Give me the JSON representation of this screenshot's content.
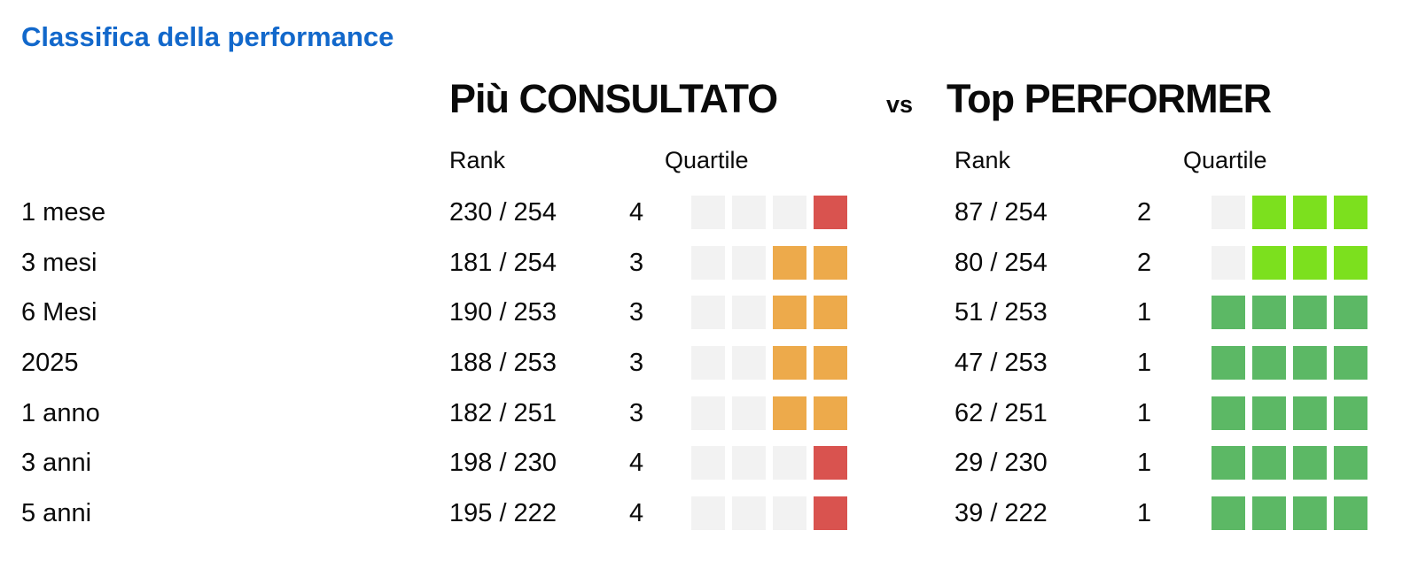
{
  "title": "Classifica della performance",
  "comparison": {
    "left_header_prefix": "Più",
    "left_header_name": "CONSULTATO",
    "vs": "vs",
    "right_header_prefix": "Top",
    "right_header_name": "PERFORMER",
    "columns": {
      "rank": "Rank",
      "quartile": "Quartile"
    }
  },
  "colors": {
    "title_blue": "#1268CB",
    "square_empty": "#F2F2F2",
    "quartile_1": "#5CB865",
    "quartile_2": "#7CE01E",
    "quartile_3": "#EDAA4B",
    "quartile_4": "#D9534F"
  },
  "rows": [
    {
      "period": "1 mese",
      "consultato": {
        "rank": "230 / 254",
        "quartile": 4
      },
      "performer": {
        "rank": "87 / 254",
        "quartile": 2
      }
    },
    {
      "period": "3 mesi",
      "consultato": {
        "rank": "181 / 254",
        "quartile": 3
      },
      "performer": {
        "rank": "80 / 254",
        "quartile": 2
      }
    },
    {
      "period": "6 Mesi",
      "consultato": {
        "rank": "190 / 253",
        "quartile": 3
      },
      "performer": {
        "rank": "51 / 253",
        "quartile": 1
      }
    },
    {
      "period": "2025",
      "consultato": {
        "rank": "188 / 253",
        "quartile": 3
      },
      "performer": {
        "rank": "47 / 253",
        "quartile": 1
      }
    },
    {
      "period": "1 anno",
      "consultato": {
        "rank": "182 / 251",
        "quartile": 3
      },
      "performer": {
        "rank": "62 / 251",
        "quartile": 1
      }
    },
    {
      "period": "3 anni",
      "consultato": {
        "rank": "198 / 230",
        "quartile": 4
      },
      "performer": {
        "rank": "29 / 230",
        "quartile": 1
      }
    },
    {
      "period": "5 anni",
      "consultato": {
        "rank": "195 / 222",
        "quartile": 4
      },
      "performer": {
        "rank": "39 / 222",
        "quartile": 1
      }
    }
  ],
  "layout": {
    "row_top_start": 212,
    "row_pitch": 56.67
  }
}
